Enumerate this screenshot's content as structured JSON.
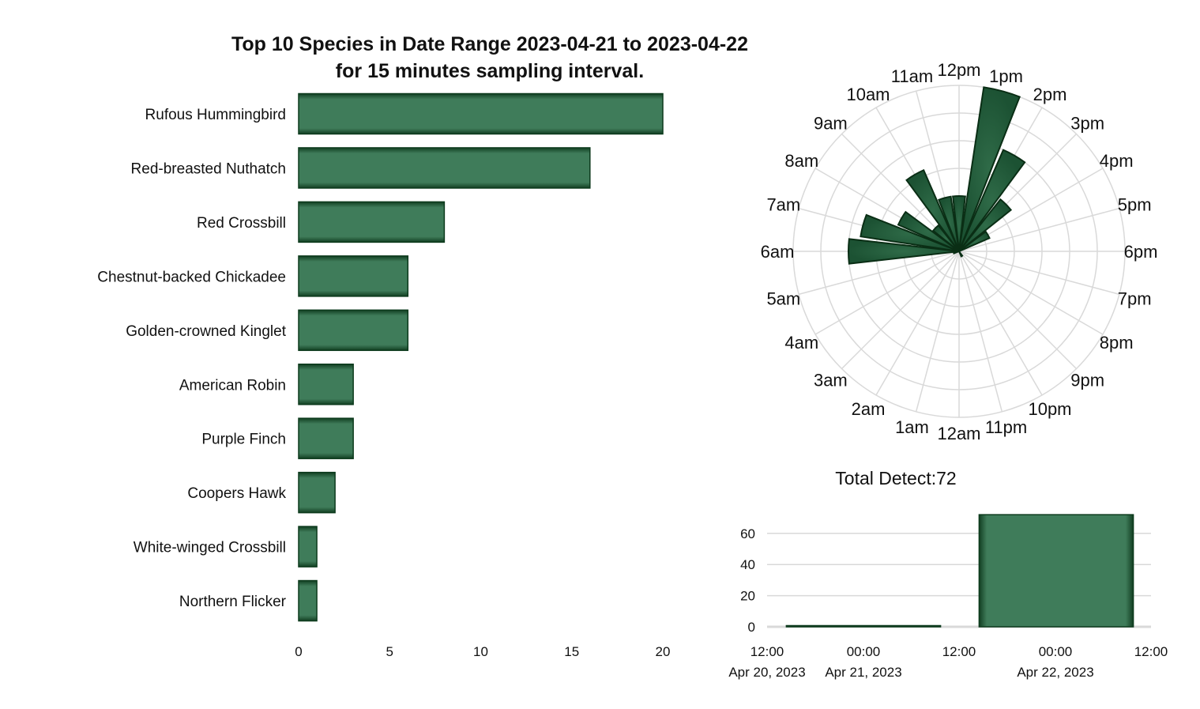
{
  "colors": {
    "bar": "#3f7c5a",
    "bar_edge": "#0c3a1c",
    "grid": "#d9d9d9"
  },
  "chart_data": [
    {
      "type": "bar",
      "orientation": "horizontal",
      "title": "Top 10 Species in Date Range 2023-04-21 to 2023-04-22",
      "subtitle": "for 15 minutes sampling interval.",
      "categories": [
        "Rufous Hummingbird",
        "Red-breasted Nuthatch",
        "Red Crossbill",
        "Chestnut-backed Chickadee",
        "Golden-crowned Kinglet",
        "American Robin",
        "Purple Finch",
        "Coopers Hawk",
        "White-winged Crossbill",
        "Northern Flicker"
      ],
      "values": [
        20,
        16,
        8,
        6,
        6,
        3,
        3,
        2,
        1,
        1
      ],
      "xlim": [
        0,
        20
      ],
      "xticks": [
        "0",
        "5",
        "10",
        "15",
        "20"
      ],
      "grid": false
    },
    {
      "type": "bar",
      "projection": "polar",
      "hour_labels": [
        "12am",
        "1am",
        "2am",
        "3am",
        "4am",
        "5am",
        "6am",
        "7am",
        "8am",
        "9am",
        "10am",
        "11am",
        "12pm",
        "1pm",
        "2pm",
        "3pm",
        "4pm",
        "5pm",
        "6pm",
        "7pm",
        "8pm",
        "9pm",
        "10pm",
        "11pm"
      ],
      "values": [
        0,
        0,
        0,
        0,
        0,
        0.5,
        10,
        9,
        6,
        3,
        8,
        5,
        5,
        15,
        10,
        6,
        3,
        0,
        0,
        0,
        0,
        0,
        0.5,
        0
      ],
      "rlim": [
        0,
        15
      ],
      "grid": true
    },
    {
      "type": "bar",
      "title": "Total Detect:72",
      "x_ticks": [
        {
          "time": "12:00",
          "date": "Apr 20, 2023"
        },
        {
          "time": "00:00",
          "date": "Apr 21, 2023"
        },
        {
          "time": "12:00",
          "date": ""
        },
        {
          "time": "00:00",
          "date": "Apr 22, 2023"
        },
        {
          "time": "12:00",
          "date": ""
        }
      ],
      "bars": [
        {
          "start": "2023-04-20 12:00",
          "end": "2023-04-21 12:00",
          "value": 0
        },
        {
          "start": "2023-04-21 12:00",
          "end": "2023-04-22 12:00",
          "value": 72
        }
      ],
      "yticks": [
        "0",
        "20",
        "40",
        "60"
      ],
      "ylim": [
        0,
        72
      ],
      "grid": true
    }
  ]
}
